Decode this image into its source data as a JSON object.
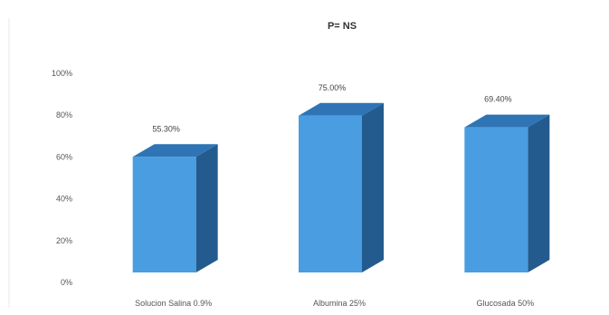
{
  "chart_data": {
    "type": "bar",
    "title": "",
    "subtitle": "P= NS",
    "categories": [
      "Solucion Salina 0.9%",
      "Albumina 25%",
      "Glucosada 50%"
    ],
    "values": [
      55.3,
      75.0,
      69.4
    ],
    "data_labels": [
      "55.30%",
      "75.00%",
      "69.40%"
    ],
    "y_ticks": [
      "0%",
      "20%",
      "40%",
      "60%",
      "80%",
      "100%"
    ],
    "ylim": [
      0,
      100
    ],
    "xlabel": "",
    "ylabel": "",
    "grid": false,
    "legend": "none",
    "style": "3d-column",
    "colors": {
      "front": "#4a9de0",
      "top": "#2f74b5",
      "side": "#235b8e"
    }
  }
}
